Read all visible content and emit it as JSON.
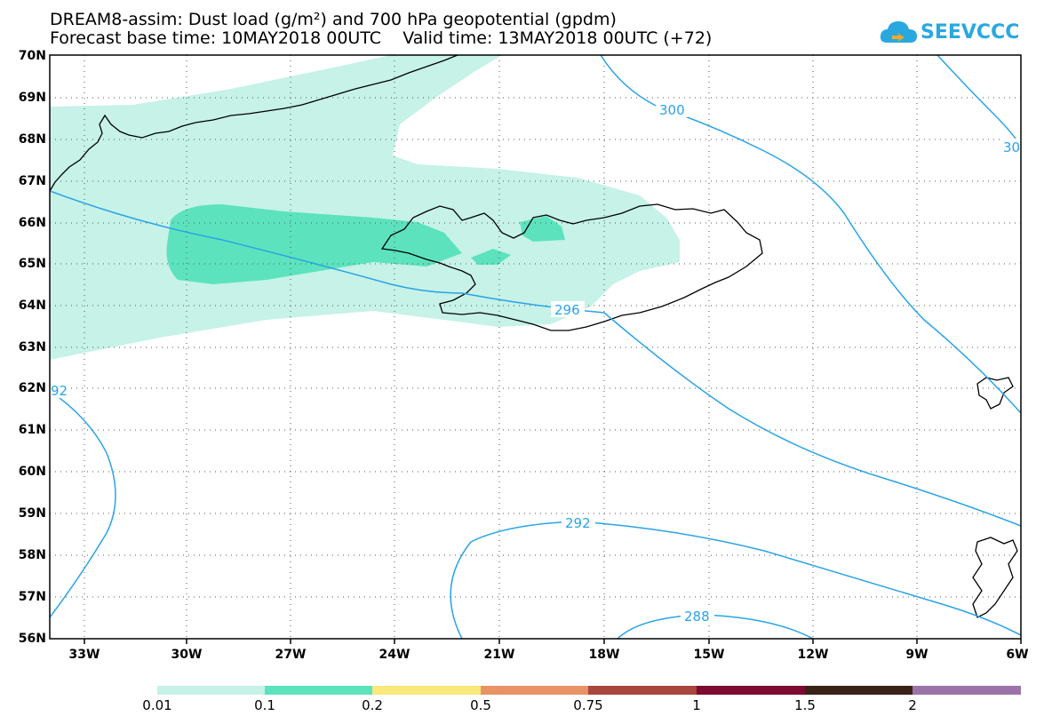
{
  "header": {
    "line1": "DREAM8-assim: Dust load (g/m²) and 700 hPa geopotential (gpdm)",
    "line2": "Forecast base time: 10MAY2018 00UTC    Valid time: 13MAY2018 00UTC (+72)"
  },
  "logo": {
    "text": "SEEVCCC",
    "color": "#29a8e0"
  },
  "map": {
    "lat_labels": [
      "70N",
      "69N",
      "68N",
      "67N",
      "66N",
      "65N",
      "64N",
      "63N",
      "62N",
      "61N",
      "60N",
      "59N",
      "58N",
      "57N",
      "56N"
    ],
    "lon_labels": [
      "33W",
      "30W",
      "27W",
      "24W",
      "21W",
      "18W",
      "15W",
      "12W",
      "9W",
      "6W"
    ],
    "contours": [
      {
        "value": "300"
      },
      {
        "value": "30"
      },
      {
        "value": "296"
      },
      {
        "value": "92"
      },
      {
        "value": "292"
      },
      {
        "value": "288"
      }
    ],
    "colors": {
      "dust_low": "#c6f2e8",
      "dust_mid": "#5ce3bd",
      "contour": "#2aa3e6",
      "coast": "#000000"
    }
  },
  "colorbar": {
    "labels": [
      "0.01",
      "0.1",
      "0.2",
      "0.5",
      "0.75",
      "1",
      "1.5",
      "2"
    ],
    "colors": [
      "#c6f2e8",
      "#5ce3bd",
      "#f9e87a",
      "#e89266",
      "#a8463f",
      "#7d0a30",
      "#3b2216",
      "#9b73a8"
    ]
  }
}
